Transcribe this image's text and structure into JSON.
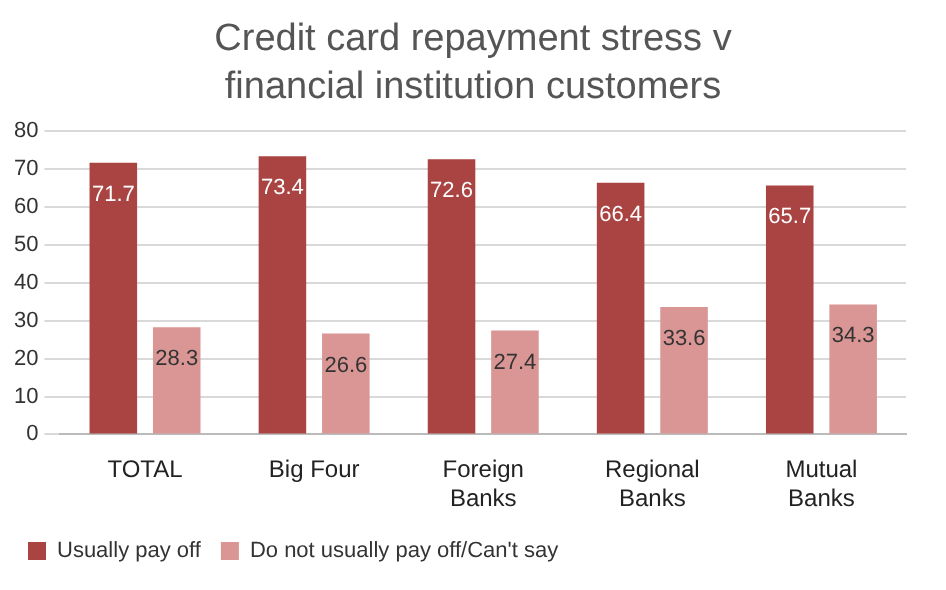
{
  "chart_data": {
    "type": "bar",
    "title": "Credit card repayment stress v financial institution customers",
    "categories": [
      "TOTAL",
      "Big Four",
      "Foreign Banks",
      "Regional Banks",
      "Mutual Banks"
    ],
    "series": [
      {
        "name": "Usually pay off",
        "color": "#a94442",
        "values": [
          71.7,
          73.4,
          72.6,
          66.4,
          65.7
        ]
      },
      {
        "name": "Do not usually pay off/Can't say",
        "color": "#d99694",
        "values": [
          28.3,
          26.6,
          27.4,
          33.6,
          34.3
        ]
      }
    ],
    "ylim": [
      0,
      80
    ],
    "yticks": [
      0,
      10,
      20,
      30,
      40,
      50,
      60,
      70,
      80
    ],
    "grid": "y",
    "legend": "bottom",
    "data_labels": true
  }
}
